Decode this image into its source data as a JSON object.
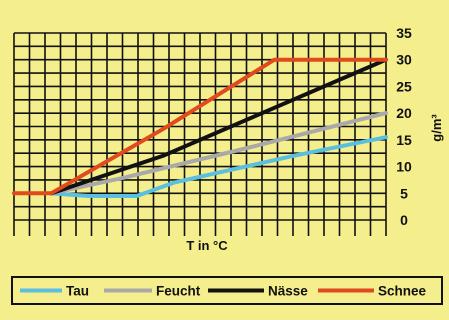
{
  "chart_data": {
    "type": "line",
    "title": "",
    "xlabel": "T in °C",
    "ylabel": "g/m³",
    "ylim": [
      0,
      35
    ],
    "yticks": [
      0,
      5,
      10,
      15,
      20,
      25,
      30,
      35
    ],
    "grid": true,
    "legend_position": "bottom",
    "series": [
      {
        "name": "Tau",
        "color": "#5bbfe0",
        "points": [
          [
            0.1,
            5
          ],
          [
            0.2,
            4.5
          ],
          [
            0.33,
            4.5
          ],
          [
            0.43,
            7
          ],
          [
            0.75,
            12
          ],
          [
            1.0,
            15.5
          ]
        ]
      },
      {
        "name": "Feucht",
        "color": "#a9a9a9",
        "points": [
          [
            0.1,
            5
          ],
          [
            0.3,
            8
          ],
          [
            0.6,
            13
          ],
          [
            1.0,
            20
          ]
        ]
      },
      {
        "name": "Nässe",
        "color": "#111111",
        "points": [
          [
            0.1,
            5
          ],
          [
            0.4,
            12
          ],
          [
            0.7,
            21
          ],
          [
            1.0,
            30
          ]
        ]
      },
      {
        "name": "Schnee",
        "color": "#e04a1c",
        "points": [
          [
            0.0,
            5
          ],
          [
            0.1,
            5
          ],
          [
            0.4,
            17
          ],
          [
            0.7,
            30
          ],
          [
            1.0,
            30
          ]
        ]
      }
    ]
  }
}
